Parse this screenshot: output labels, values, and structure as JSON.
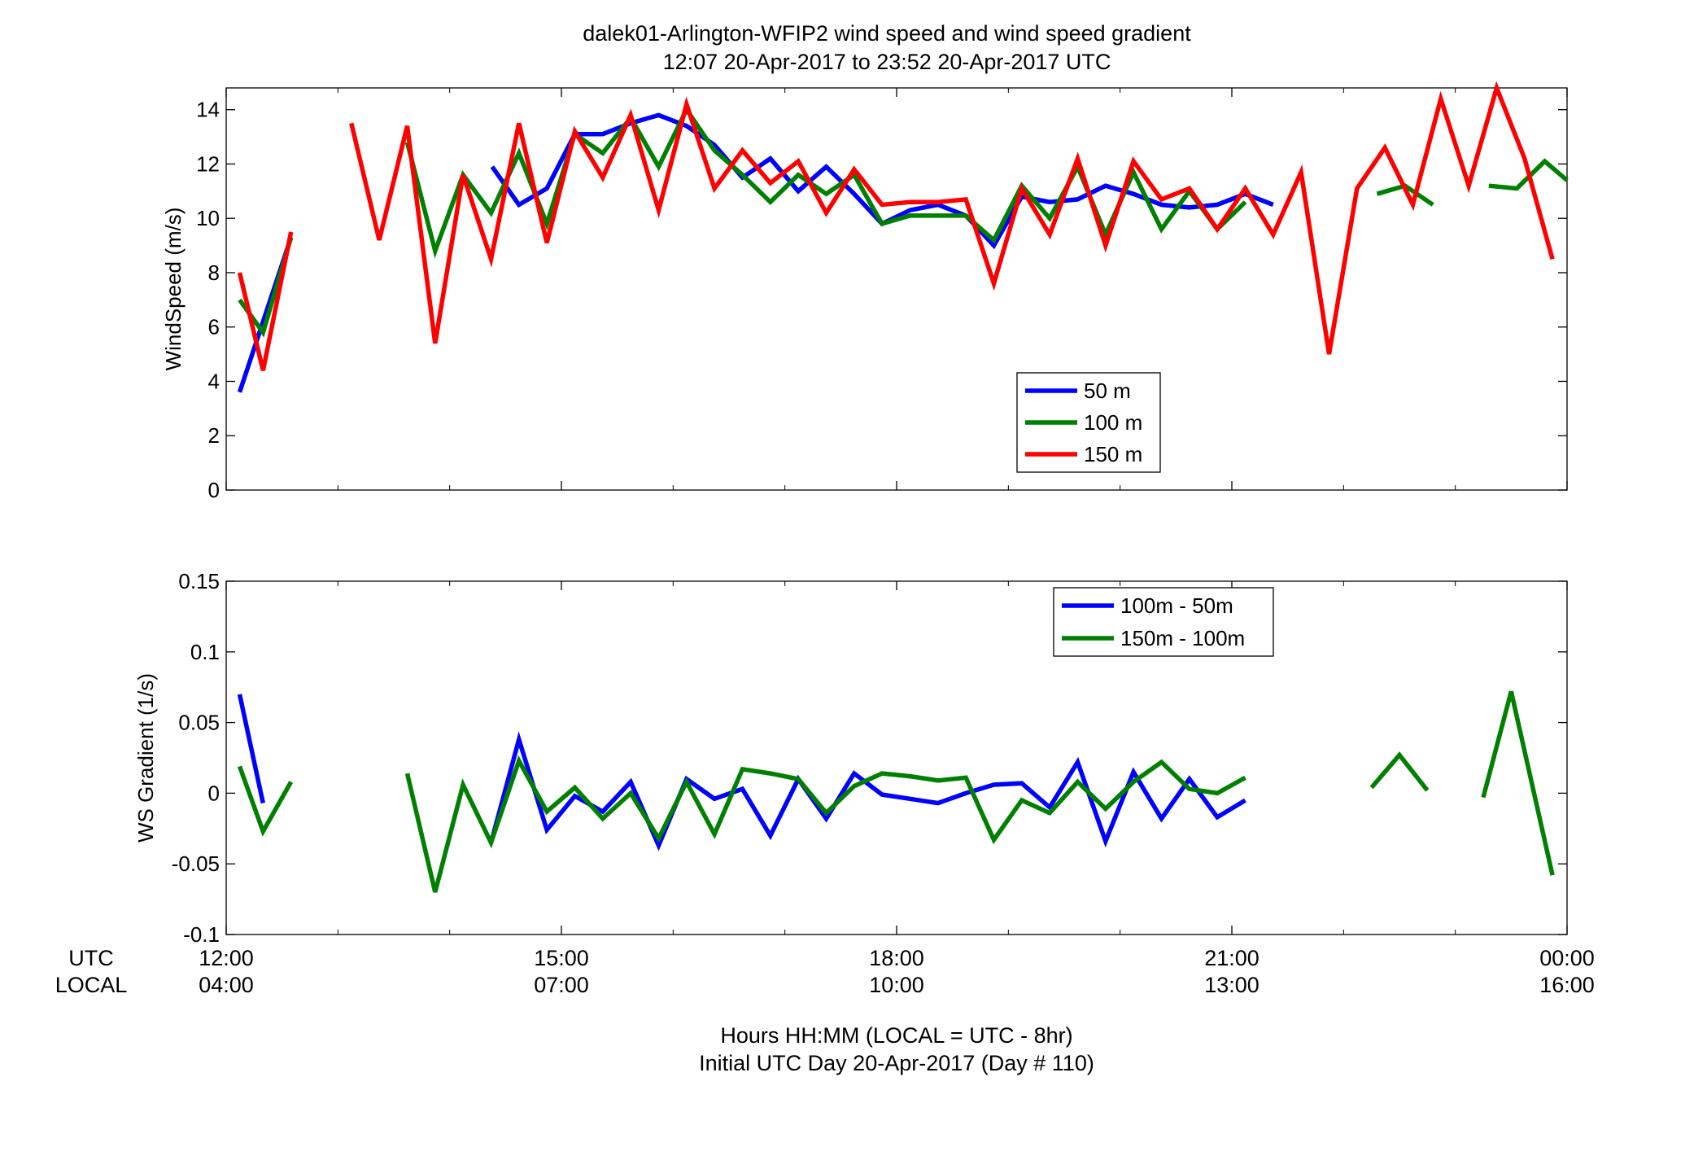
{
  "figure": {
    "title_line1": "dalek01-Arlington-WFIP2  wind speed and wind speed gradient",
    "title_line2": "12:07 20-Apr-2017 to 23:52 20-Apr-2017  UTC",
    "xlabel_line1": "Hours HH:MM  (LOCAL = UTC - 8hr)",
    "xlabel_line2": "Initial UTC Day 20-Apr-2017 (Day # 110)",
    "row_label_utc": "UTC",
    "row_label_local": "LOCAL",
    "utc_ticks": [
      "12:00",
      "15:00",
      "18:00",
      "21:00",
      "00:00"
    ],
    "local_ticks": [
      "04:00",
      "07:00",
      "10:00",
      "13:00",
      "16:00"
    ]
  },
  "chart_data": [
    {
      "type": "line",
      "ylabel": "WindSpeed (m/s)",
      "xlim": [
        12.0,
        24.0
      ],
      "ylim": [
        0,
        14.8
      ],
      "yticks": [
        0,
        2,
        4,
        6,
        8,
        10,
        12,
        14
      ],
      "ytick_labels": [
        "0",
        "2",
        "4",
        "6",
        "8",
        "10",
        "12",
        "14"
      ],
      "x_unit": "hours UTC",
      "legend_position": "lower-center",
      "series": [
        {
          "name": "50 m",
          "color": "#0000ff",
          "x": [
            12.12,
            12.33,
            12.58,
            null,
            14.38,
            14.62,
            14.87,
            15.12,
            15.37,
            15.62,
            15.87,
            16.12,
            16.37,
            16.62,
            16.87,
            17.12,
            17.37,
            17.62,
            17.87,
            18.12,
            18.37,
            18.62,
            18.87,
            19.12,
            19.37,
            19.62,
            19.87,
            20.12,
            20.37,
            20.62,
            20.87,
            21.12,
            21.37
          ],
          "values": [
            3.6,
            6.2,
            9.3,
            null,
            11.9,
            10.5,
            11.1,
            13.1,
            13.1,
            13.5,
            13.8,
            13.4,
            12.7,
            11.5,
            12.2,
            11.0,
            11.9,
            10.9,
            9.8,
            10.3,
            10.5,
            10.1,
            9.0,
            10.8,
            10.6,
            10.7,
            11.2,
            10.9,
            10.5,
            10.4,
            10.5,
            10.9,
            10.5
          ]
        },
        {
          "name": "100 m",
          "color": "#008000",
          "x": [
            12.12,
            12.33,
            12.58,
            null,
            13.62,
            13.87,
            14.12,
            14.37,
            14.62,
            14.87,
            15.12,
            15.37,
            15.62,
            15.87,
            16.12,
            16.37,
            16.62,
            16.87,
            17.12,
            17.37,
            17.62,
            17.87,
            18.12,
            18.37,
            18.62,
            18.87,
            19.12,
            19.37,
            19.62,
            19.87,
            20.12,
            20.37,
            20.62,
            20.87,
            21.12,
            null,
            22.3,
            22.55,
            22.8,
            null,
            23.3,
            23.55,
            23.8,
            24.0
          ],
          "values": [
            7.0,
            5.8,
            9.3,
            null,
            12.8,
            8.8,
            11.6,
            10.2,
            12.4,
            9.8,
            13.1,
            12.4,
            13.7,
            11.9,
            14.0,
            12.5,
            11.6,
            10.6,
            11.6,
            10.9,
            11.6,
            9.8,
            10.1,
            10.1,
            10.1,
            9.2,
            11.2,
            10.0,
            11.9,
            9.4,
            11.7,
            9.6,
            11.0,
            9.6,
            10.6,
            null,
            10.9,
            11.2,
            10.5,
            null,
            11.2,
            11.1,
            12.1,
            11.4
          ]
        },
        {
          "name": "150 m",
          "color": "#ff0000",
          "x": [
            12.12,
            12.33,
            12.58,
            null,
            13.12,
            13.37,
            13.62,
            13.87,
            14.12,
            14.37,
            14.62,
            14.87,
            15.12,
            15.37,
            15.62,
            15.87,
            16.12,
            16.37,
            16.62,
            16.87,
            17.12,
            17.37,
            17.62,
            17.87,
            18.12,
            18.37,
            18.62,
            18.87,
            19.12,
            19.37,
            19.62,
            19.87,
            20.12,
            20.37,
            20.62,
            20.87,
            21.12,
            21.37,
            21.62,
            21.87,
            22.12,
            22.37,
            22.62,
            22.87,
            23.12,
            23.37,
            23.62,
            23.87
          ],
          "values": [
            8.0,
            4.4,
            9.5,
            null,
            13.5,
            9.2,
            13.4,
            5.4,
            11.6,
            8.5,
            13.5,
            9.1,
            13.2,
            11.5,
            13.8,
            10.3,
            14.2,
            11.1,
            12.5,
            11.3,
            12.1,
            10.2,
            11.8,
            10.5,
            10.6,
            10.6,
            10.7,
            7.6,
            11.1,
            9.4,
            12.2,
            9.0,
            12.1,
            10.7,
            11.1,
            9.6,
            11.1,
            9.4,
            11.7,
            5.0,
            11.1,
            12.6,
            10.5,
            14.4,
            11.2,
            14.8,
            12.2,
            8.5
          ]
        }
      ]
    },
    {
      "type": "line",
      "ylabel": "WS Gradient (1/s)",
      "xlim": [
        12.0,
        24.0
      ],
      "ylim": [
        -0.1,
        0.15
      ],
      "yticks": [
        -0.1,
        -0.05,
        0,
        0.05,
        0.1,
        0.15
      ],
      "ytick_labels": [
        "-0.1",
        "-0.05",
        "0",
        "0.05",
        "0.1",
        "0.15"
      ],
      "x_unit": "hours UTC",
      "legend_position": "top-right",
      "series": [
        {
          "name": "100m - 50m",
          "color": "#0000ff",
          "x": [
            12.12,
            12.33,
            null,
            14.37,
            14.62,
            14.87,
            15.12,
            15.37,
            15.62,
            15.87,
            16.12,
            16.37,
            16.62,
            16.87,
            17.12,
            17.37,
            17.62,
            17.87,
            18.12,
            18.37,
            18.62,
            18.87,
            19.12,
            19.37,
            19.62,
            19.87,
            20.12,
            20.37,
            20.62,
            20.87,
            21.12
          ],
          "values": [
            0.07,
            -0.007,
            null,
            -0.035,
            0.038,
            -0.026,
            -0.002,
            -0.013,
            0.008,
            -0.037,
            0.01,
            -0.004,
            0.003,
            -0.03,
            0.01,
            -0.018,
            0.014,
            -0.001,
            -0.004,
            -0.007,
            0.0,
            0.006,
            0.007,
            -0.01,
            0.022,
            -0.034,
            0.015,
            -0.018,
            0.01,
            -0.017,
            -0.005
          ]
        },
        {
          "name": "150m - 100m",
          "color": "#008000",
          "x": [
            12.12,
            12.33,
            12.58,
            null,
            13.62,
            13.87,
            14.12,
            14.37,
            14.62,
            14.87,
            15.12,
            15.37,
            15.62,
            15.87,
            16.12,
            16.37,
            16.62,
            16.87,
            17.12,
            17.37,
            17.62,
            17.87,
            18.12,
            18.37,
            18.62,
            18.87,
            19.12,
            19.37,
            19.62,
            19.87,
            20.12,
            20.37,
            20.62,
            20.87,
            21.12,
            null,
            22.25,
            22.5,
            22.75,
            null,
            23.25,
            23.5,
            23.87
          ],
          "values": [
            0.019,
            -0.027,
            0.008,
            null,
            0.014,
            -0.07,
            0.006,
            -0.035,
            0.023,
            -0.013,
            0.004,
            -0.018,
            0.0,
            -0.032,
            0.008,
            -0.029,
            0.017,
            0.014,
            0.01,
            -0.014,
            0.005,
            0.014,
            0.012,
            0.009,
            0.011,
            -0.033,
            -0.005,
            -0.014,
            0.008,
            -0.011,
            0.008,
            0.022,
            0.003,
            0.0,
            0.011,
            null,
            0.004,
            0.027,
            0.002,
            null,
            -0.003,
            0.072,
            -0.058
          ]
        }
      ]
    }
  ]
}
